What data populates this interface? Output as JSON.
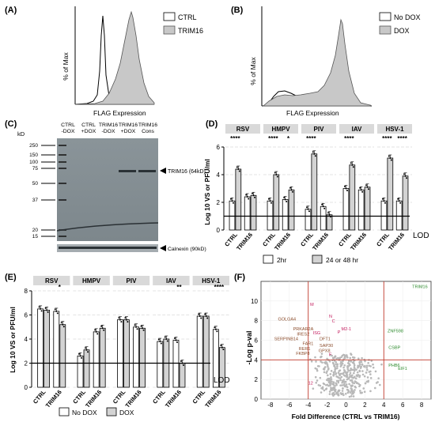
{
  "panels": {
    "A": {
      "label": "(A)",
      "ylabel": "% of Max",
      "xlabel": "FLAG Expression",
      "legend": [
        {
          "label": "CTRL",
          "color": "#ffffff"
        },
        {
          "label": "TRIM16",
          "color": "#c8c8c8"
        }
      ]
    },
    "B": {
      "label": "(B)",
      "ylabel": "% of Max",
      "xlabel": "FLAG Expression",
      "legend": [
        {
          "label": "No DOX",
          "color": "#ffffff"
        },
        {
          "label": "DOX",
          "color": "#c8c8c8"
        }
      ]
    },
    "C": {
      "label": "(C)",
      "kd_label": "kD",
      "lanes": [
        "CTRL -DOX",
        "CTRL +DOX",
        "TRIM16 -DOX",
        "TRIM16 +DOX",
        "TRIM16 Cons"
      ],
      "markers": [
        "250",
        "150",
        "100",
        "75",
        "50",
        "37",
        "20",
        "15"
      ],
      "band_label": "TRIM16 (64kD)",
      "loading_label": "Calnexin (90kD)"
    },
    "D": {
      "label": "(D)",
      "ylabel": "Log 10 VS or PFU/ml",
      "lod": "LOD",
      "viruses": [
        "RSV",
        "HMPV",
        "PIV",
        "IAV",
        "HSV-1"
      ],
      "groups": [
        "CTRL",
        "TRIM16"
      ],
      "sig_labels": [
        "****",
        "",
        "****",
        "*",
        "****",
        "",
        "****",
        "",
        "****",
        "****"
      ],
      "legend": [
        "2hr",
        "24 or 48 hr"
      ]
    },
    "E": {
      "label": "(E)",
      "ylabel": "Log 10 VS or PFU/ml",
      "lod": "LOD",
      "viruses": [
        "RSV",
        "HMPV",
        "PIV",
        "IAV",
        "HSV-1"
      ],
      "groups": [
        "CTRL",
        "TRIM16"
      ],
      "sig_labels": [
        "",
        "*",
        "",
        "",
        "",
        "",
        "",
        "**",
        "",
        "****"
      ],
      "legend": [
        "No DOX",
        "DOX"
      ]
    },
    "F": {
      "label": "(F)",
      "ylabel": "-Log p-val",
      "xlabel": "Fold Difference (CTRL vs TRIM16)",
      "left_genes": [
        "GOLGA4",
        "PRKAR2A",
        "IRES2",
        "SERPINB14",
        "FAR1",
        "RER1",
        "FKBP8"
      ],
      "mid_genes": [
        "DFT1",
        "SAP30",
        "GPX8",
        "ISG",
        "M",
        "N",
        "C",
        "M2-1",
        "F",
        "P",
        "12"
      ],
      "right_genes": [
        "TRIM16",
        "ZNF598",
        "CSBP",
        "PHB6",
        "EIF1"
      ]
    }
  },
  "chart_data": [
    {
      "type": "bar",
      "panel": "D",
      "categories": [
        "RSV CTRL",
        "RSV TRIM16",
        "HMPV CTRL",
        "HMPV TRIM16",
        "PIV CTRL",
        "PIV TRIM16",
        "IAV CTRL",
        "IAV TRIM16",
        "HSV-1 CTRL",
        "HSV-1 TRIM16"
      ],
      "series": [
        {
          "name": "2hr",
          "values": [
            2.1,
            2.4,
            2.1,
            2.2,
            1.5,
            1.7,
            3.0,
            2.9,
            2.1,
            2.1
          ]
        },
        {
          "name": "24 or 48 hr",
          "values": [
            4.4,
            2.5,
            4.0,
            2.9,
            5.5,
            1.1,
            4.7,
            3.1,
            5.2,
            3.9
          ]
        }
      ],
      "ylim": [
        0,
        6
      ],
      "lod": 1.0,
      "yticks": [
        0,
        2,
        4,
        6
      ]
    },
    {
      "type": "bar",
      "panel": "E",
      "categories": [
        "RSV CTRL",
        "RSV TRIM16",
        "HMPV CTRL",
        "HMPV TRIM16",
        "PIV CTRL",
        "PIV TRIM16",
        "IAV CTRL",
        "IAV TRIM16",
        "HSV-1 CTRL",
        "HSV-1 TRIM16"
      ],
      "series": [
        {
          "name": "No DOX",
          "values": [
            6.5,
            6.3,
            2.6,
            4.6,
            5.6,
            5.0,
            3.8,
            3.9,
            5.9,
            4.8
          ]
        },
        {
          "name": "DOX",
          "values": [
            6.4,
            5.2,
            3.1,
            4.9,
            5.6,
            4.9,
            4.0,
            2.0,
            5.9,
            3.3
          ]
        }
      ],
      "ylim": [
        0,
        8
      ],
      "lod": 2.0,
      "yticks": [
        0,
        2,
        4,
        6,
        8
      ]
    },
    {
      "type": "scatter",
      "panel": "F",
      "xticks": [
        -8,
        -6,
        -4,
        -2,
        0,
        2,
        4,
        6,
        8
      ],
      "yticks": [
        0,
        2,
        4,
        6,
        8,
        10
      ],
      "xlim": [
        -9,
        9
      ],
      "ylim": [
        0,
        12
      ],
      "thresholds": {
        "x": [
          -4,
          4
        ],
        "y": 4
      }
    }
  ]
}
